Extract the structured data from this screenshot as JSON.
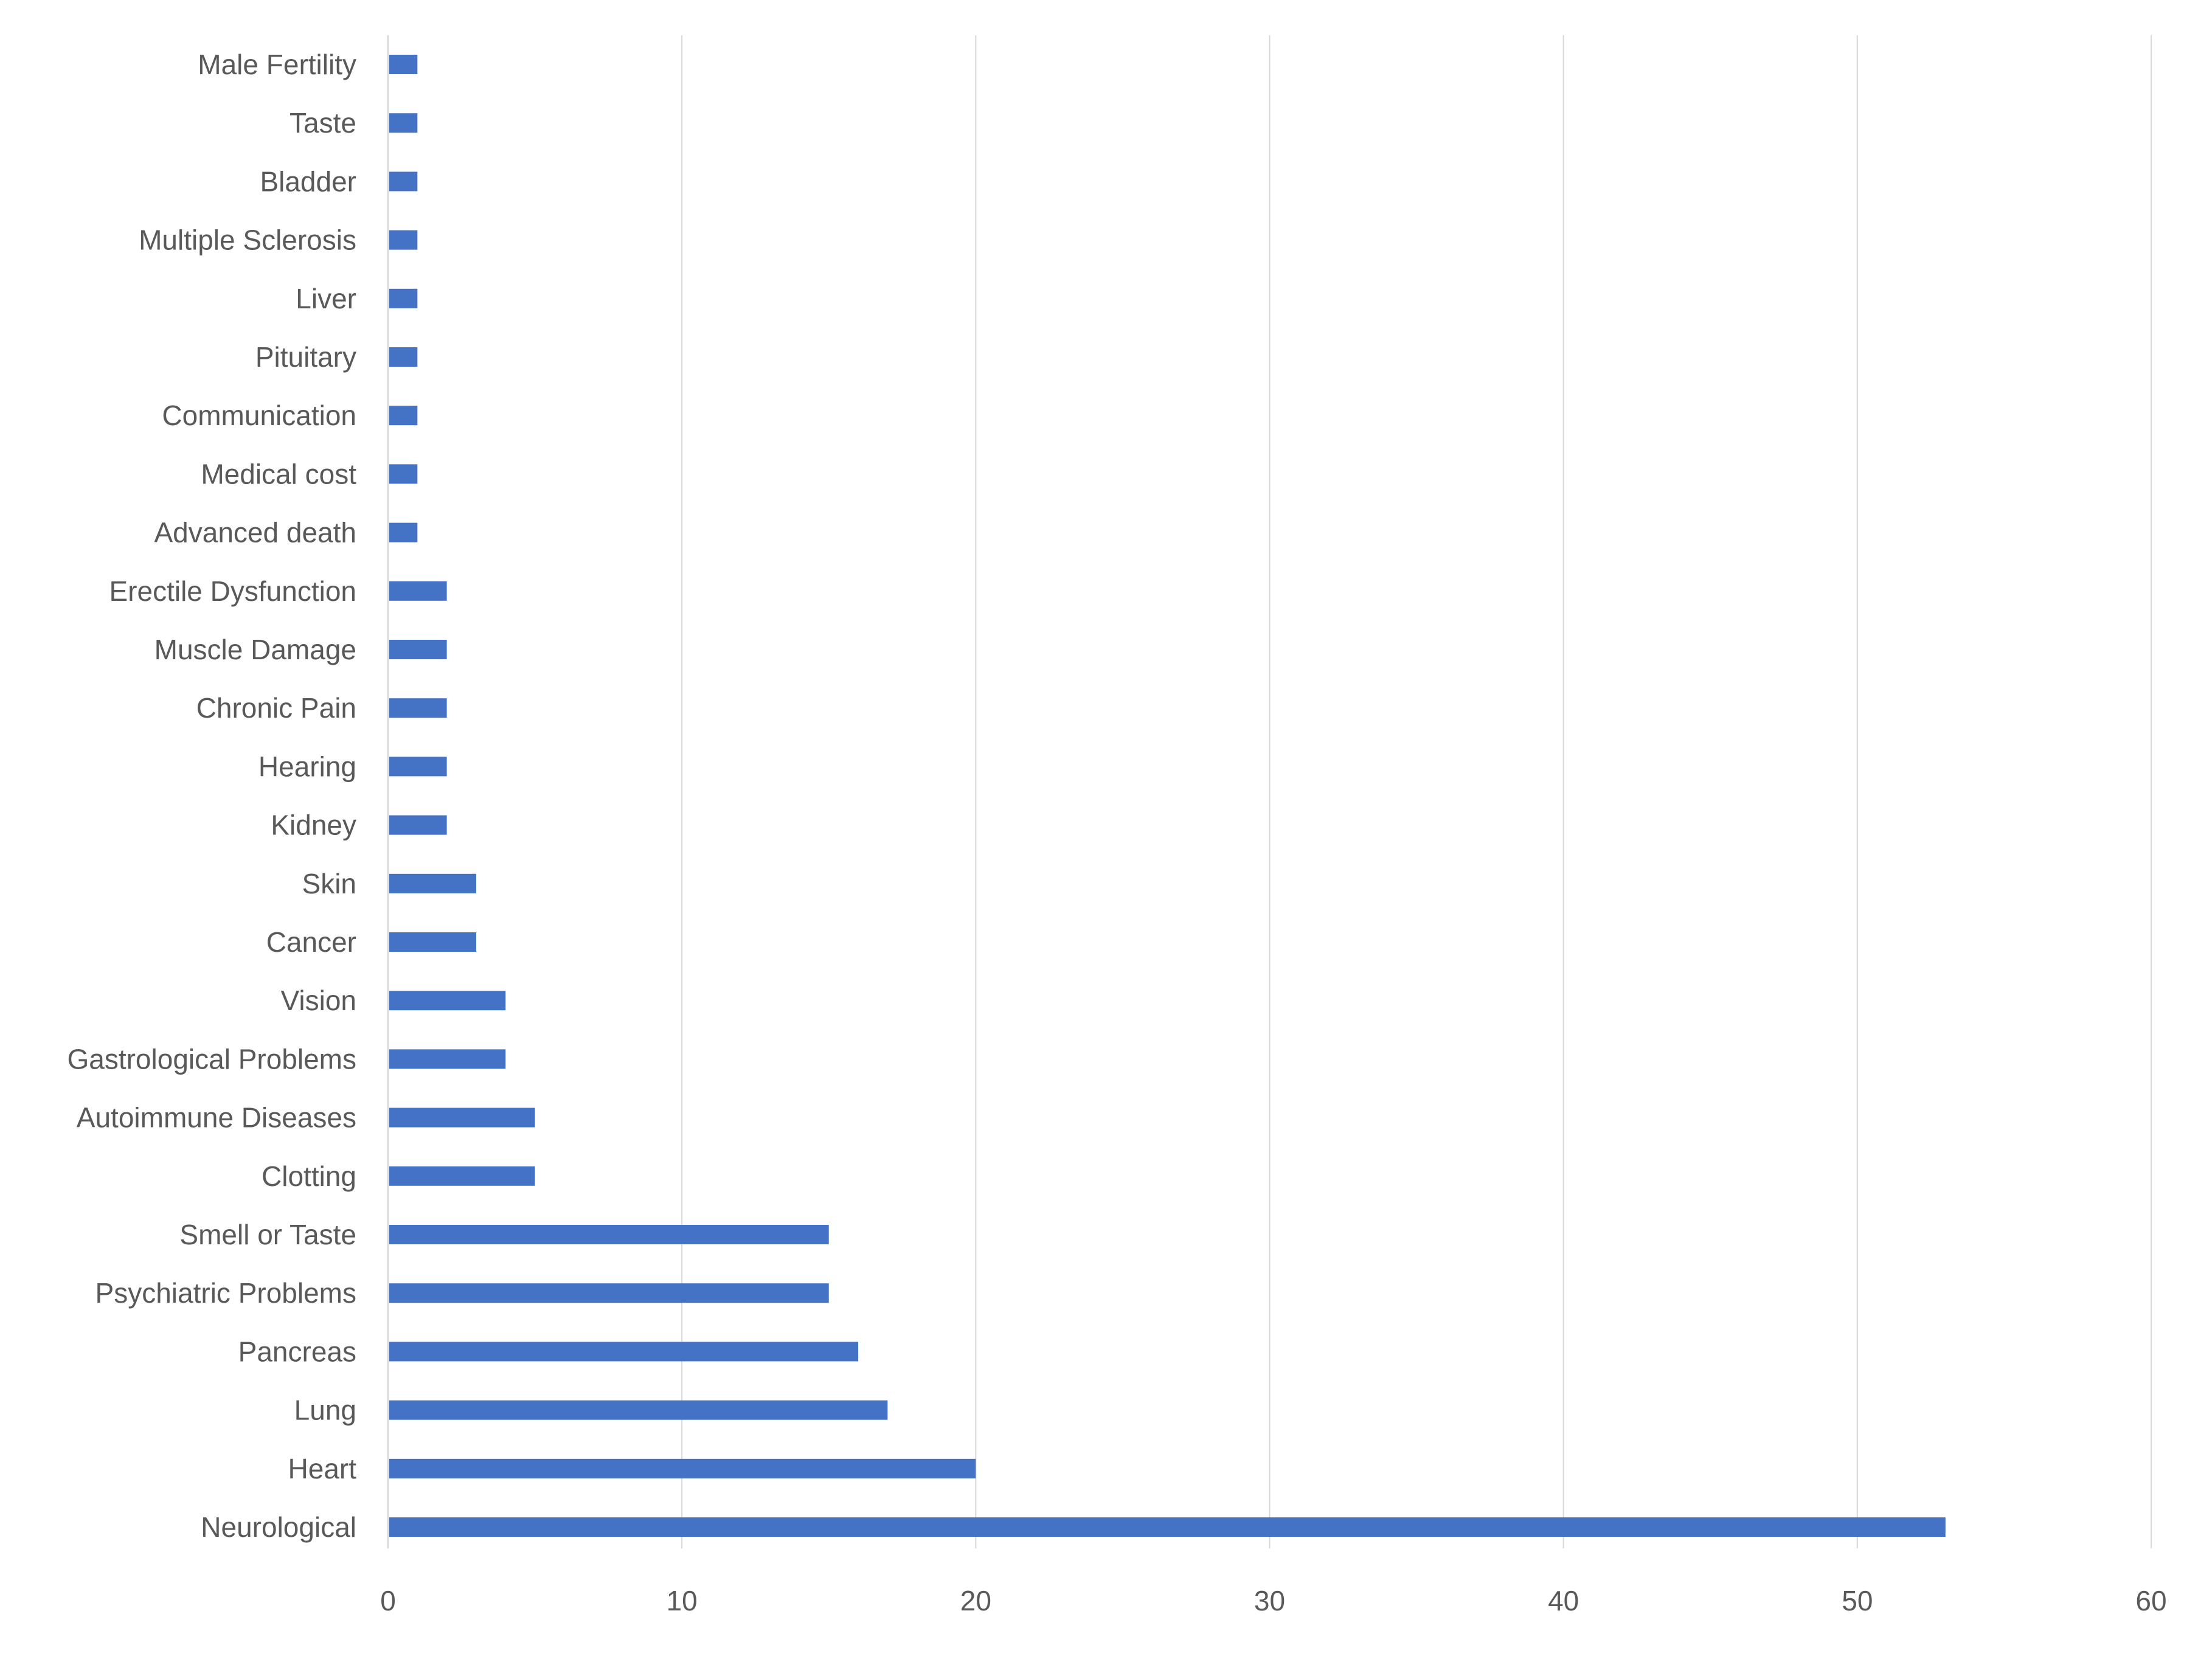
{
  "chart_data": {
    "type": "bar",
    "orientation": "horizontal",
    "title": "",
    "xlabel": "",
    "ylabel": "",
    "xlim": [
      0,
      60
    ],
    "x_ticks": [
      "0",
      "10",
      "20",
      "30",
      "40",
      "50",
      "60"
    ],
    "x_tick_values": [
      0,
      10,
      20,
      30,
      40,
      50,
      60
    ],
    "grid": "vertical",
    "legend": "none",
    "bar_color": "#4472C4",
    "grid_color": "#d9d9d9",
    "label_color": "#595959",
    "categories": [
      "Male Fertility",
      "Taste",
      "Bladder",
      "Multiple Sclerosis",
      "Liver",
      "Pituitary",
      "Communication",
      "Medical cost",
      "Advanced death",
      "Erectile Dysfunction",
      "Muscle Damage",
      "Chronic Pain",
      "Hearing",
      "Kidney",
      "Skin",
      "Cancer",
      "Vision",
      "Gastrological Problems",
      "Autoimmune Diseases",
      "Clotting",
      "Smell or Taste",
      "Psychiatric Problems",
      "Pancreas",
      "Lung",
      "Heart",
      "Neurological"
    ],
    "values": [
      1,
      1,
      1,
      1,
      1,
      1,
      1,
      1,
      1,
      2,
      2,
      2,
      2,
      2,
      3,
      3,
      4,
      4,
      5,
      5,
      15,
      15,
      16,
      17,
      20,
      53
    ]
  }
}
